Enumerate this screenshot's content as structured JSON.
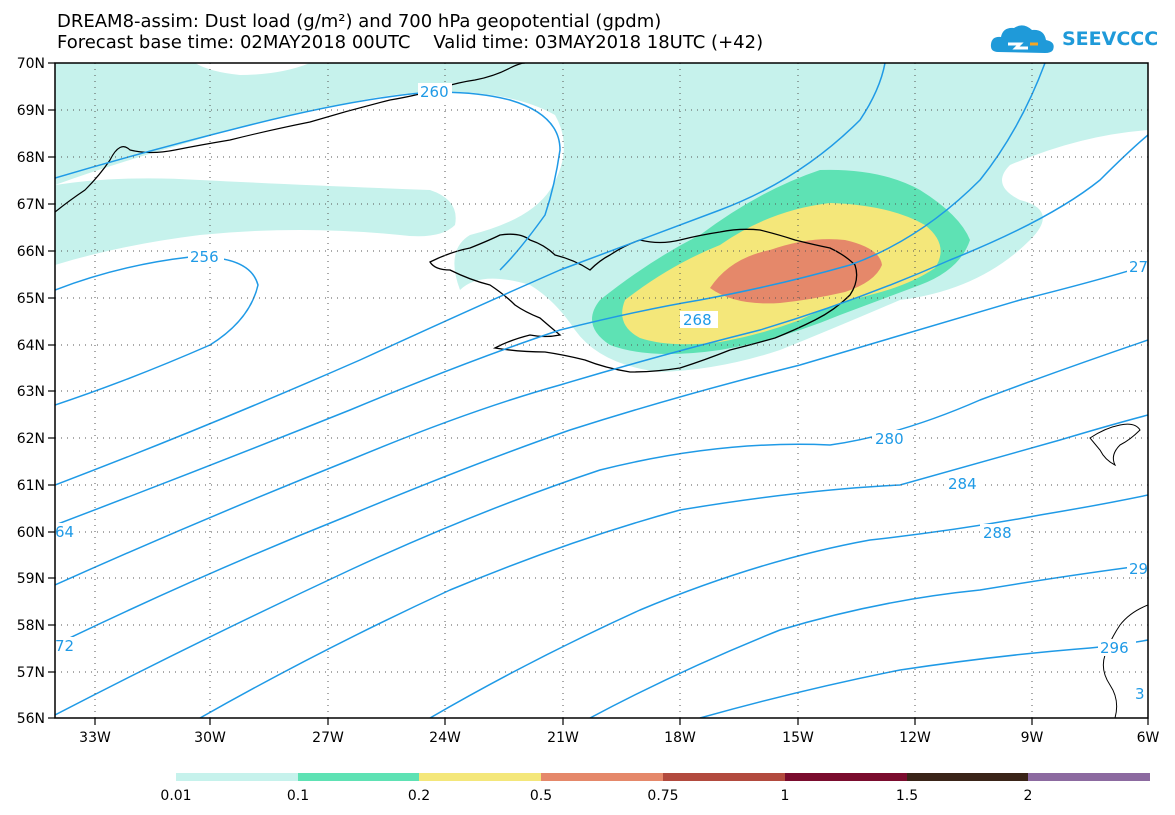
{
  "header": {
    "title_line1": "DREAM8-assim: Dust load (g/m²) and 700 hPa geopotential (gpdm)",
    "title_line2": "Forecast base time: 02MAY2018 00UTC    Valid time: 03MAY2018 18UTC (+42)"
  },
  "logo": {
    "text": "SEEVCCC"
  },
  "map": {
    "lon_range": [
      -34.5,
      -6
    ],
    "lat_range": [
      56,
      70
    ],
    "lat_labels": [
      "70N",
      "69N",
      "68N",
      "67N",
      "66N",
      "65N",
      "64N",
      "63N",
      "62N",
      "61N",
      "60N",
      "59N",
      "58N",
      "57N",
      "56N"
    ],
    "lon_labels": [
      "33W",
      "30W",
      "27W",
      "24W",
      "21W",
      "18W",
      "15W",
      "12W",
      "9W",
      "6W"
    ],
    "contour_labels": [
      "260",
      "256",
      "268",
      "280",
      "284",
      "288",
      "29",
      "27",
      "64",
      "72",
      "296",
      "3"
    ],
    "colors": {
      "contour": "#1f9ae6",
      "dust_0_01": "#c6f2ec",
      "dust_0_1": "#5ee2b4",
      "dust_0_2": "#f4e77a",
      "dust_0_5": "#e5886a"
    }
  },
  "colorbar": {
    "labels": [
      "0.01",
      "0.1",
      "0.2",
      "0.5",
      "0.75",
      "1",
      "1.5",
      "2"
    ],
    "colors": [
      "#c6f2ec",
      "#5ee2b4",
      "#f4e77a",
      "#e5886a",
      "#b24a3e",
      "#7a0c2e",
      "#3a2418",
      "#8c6aa0"
    ]
  }
}
